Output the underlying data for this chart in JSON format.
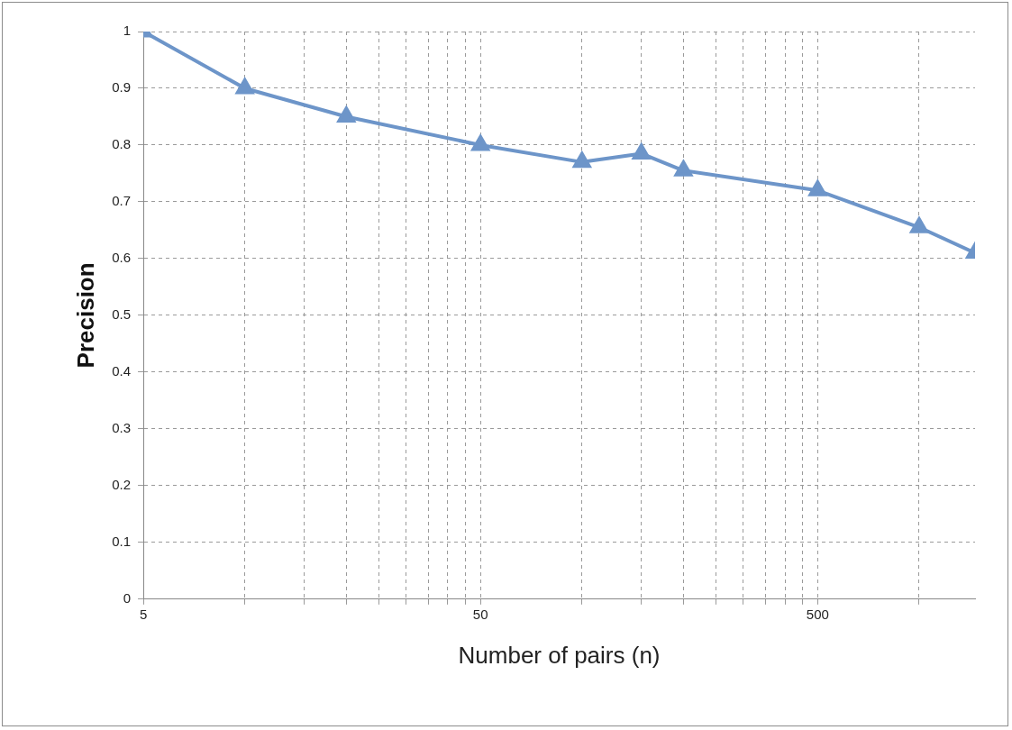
{
  "chart_data": {
    "type": "line",
    "xlabel": "Number of pairs (n)",
    "ylabel": "Precision",
    "log": "x",
    "x": [
      5,
      10,
      20,
      50,
      100,
      150,
      200,
      500,
      1000,
      1465
    ],
    "series": [
      {
        "color": "#6d95c9",
        "values": [
          1.0,
          0.9,
          0.85,
          0.8,
          0.77,
          0.785,
          0.755,
          0.72,
          0.655,
          0.61
        ]
      }
    ],
    "xlim": [
      5,
      1465
    ],
    "xticks": [
      5,
      {
        "value": 10,
        "label": null
      },
      {
        "value": 15,
        "label": null
      },
      {
        "value": 20,
        "label": null
      },
      {
        "value": 25,
        "label": null
      },
      {
        "value": 30,
        "label": null
      },
      {
        "value": 35,
        "label": null
      },
      {
        "value": 40,
        "label": null
      },
      {
        "value": 45,
        "label": null
      },
      50,
      {
        "value": 100,
        "label": null
      },
      {
        "value": 150,
        "label": null
      },
      {
        "value": 200,
        "label": null
      },
      {
        "value": 250,
        "label": null
      },
      {
        "value": 300,
        "label": null
      },
      {
        "value": 350,
        "label": null
      },
      {
        "value": 400,
        "label": null
      },
      {
        "value": 450,
        "label": null
      },
      500,
      {
        "value": 1000,
        "label": null
      }
    ],
    "ylim": [
      0,
      1
    ],
    "yticks": [
      0,
      0.1,
      0.2,
      0.3,
      0.4,
      0.5,
      0.6,
      0.7,
      0.8,
      0.9,
      1
    ],
    "grid": true,
    "legend": false,
    "marker": "triangle",
    "line_style": "solid"
  }
}
